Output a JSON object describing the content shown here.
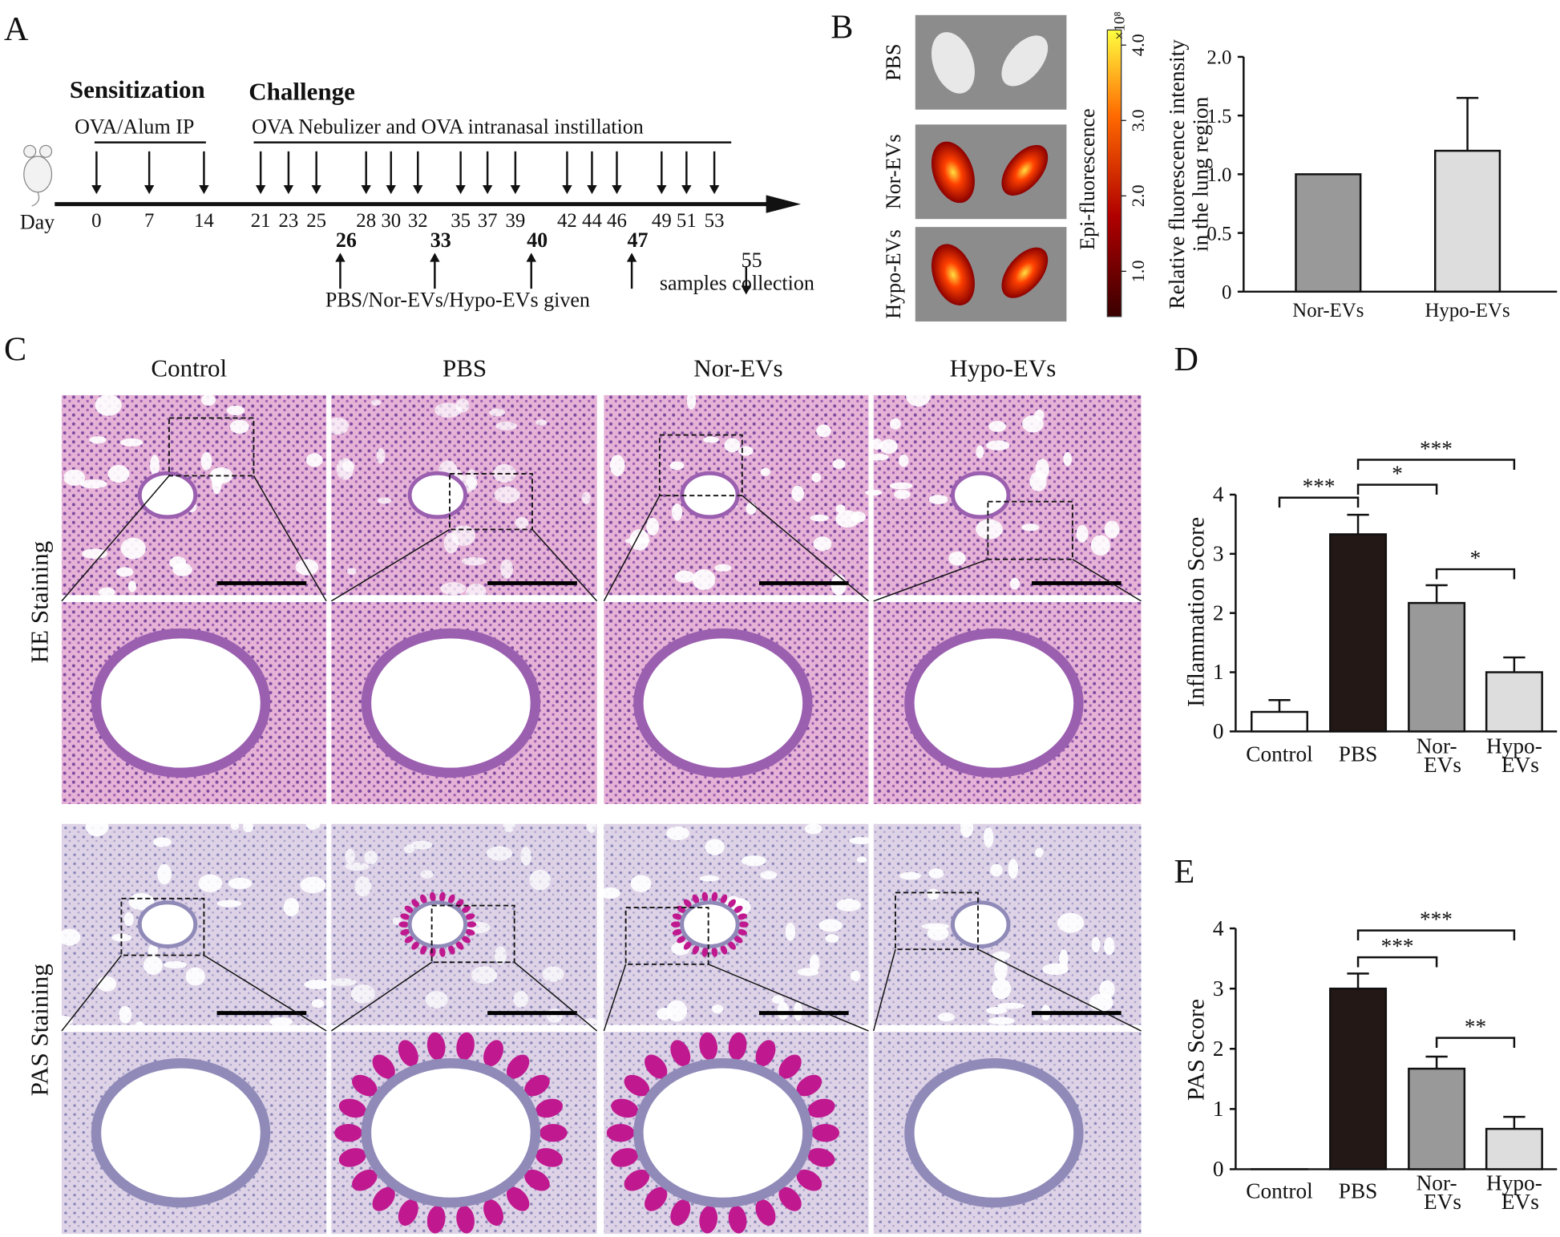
{
  "panels": {
    "A": {
      "label": "A",
      "sensitization": "Sensitization",
      "challenge": "Challenge",
      "sensitization_route": "OVA/Alum IP",
      "challenge_route": "OVA Nebulizer and OVA intranasal instillation",
      "day_label": "Day",
      "days": [
        "0",
        "7",
        "14",
        "21",
        "23",
        "25",
        "28",
        "30",
        "32",
        "35",
        "37",
        "39",
        "42",
        "44",
        "46",
        "49",
        "51",
        "53"
      ],
      "treatment_days": [
        "26",
        "33",
        "40",
        "47"
      ],
      "treatment": "PBS/Nor-EVs/Hypo-EVs given",
      "end_day": "55",
      "end_event": "samples collection"
    },
    "B_image": {
      "label": "B",
      "rows": [
        "PBS",
        "Nor-EVs",
        "Hypo-EVs"
      ],
      "colorbar": {
        "title": "Epi-fluorescence",
        "multiplier": "×10⁸",
        "range": [
          0.4,
          4.2
        ],
        "ticks": [
          {
            "value": 1,
            "label": "1.0"
          },
          {
            "value": 2,
            "label": "2.0"
          },
          {
            "value": 3,
            "label": "3.0"
          },
          {
            "value": 4,
            "label": "4.0"
          }
        ]
      }
    },
    "C": {
      "label": "C",
      "columns": [
        "Control",
        "PBS",
        "Nor-EVs",
        "Hypo-EVs"
      ],
      "rows": [
        "HE Staining",
        "PAS Staining"
      ]
    },
    "D": {
      "label": "D"
    },
    "E": {
      "label": "E"
    }
  },
  "chart_data": [
    {
      "type": "bar",
      "y_label": [
        "Relative fluorescence intensity",
        "in the lung region"
      ],
      "categories": [
        "Nor-EVs",
        "Hypo-EVs"
      ],
      "values": [
        1.0,
        1.2
      ],
      "errors": [
        null,
        0.45
      ],
      "colors": [
        "#999999",
        "#dddddd"
      ],
      "ylim": [
        0,
        2
      ],
      "yticks": [
        0,
        0.5,
        {
          "value": 1,
          "label": "1.0"
        },
        1.5,
        {
          "value": 2,
          "label": "2.0"
        }
      ]
    },
    {
      "type": "bar",
      "y_label": [
        "Inflammation Score"
      ],
      "categories": [
        "Control",
        "PBS",
        "Nor-EVs",
        "Hypo-EVs"
      ],
      "values": [
        0.33,
        3.33,
        2.17,
        1.0
      ],
      "errors": [
        0.2,
        0.33,
        0.3,
        0.25
      ],
      "colors": [
        "#ffffff",
        "#231815",
        "#999999",
        "#dddddd"
      ],
      "ylim": [
        0,
        4
      ],
      "yticks": [
        0,
        1,
        2,
        3,
        4
      ],
      "annotations": [
        "***",
        "*",
        "***",
        "*"
      ]
    },
    {
      "type": "bar",
      "y_label": [
        "PAS Score"
      ],
      "categories": [
        "Control",
        "PBS",
        "Nor-EVs",
        "Hypo-EVs"
      ],
      "values": [
        0,
        3.0,
        1.67,
        0.67
      ],
      "errors": [
        null,
        0.25,
        0.2,
        0.2
      ],
      "colors": [
        "#ffffff",
        "#231815",
        "#999999",
        "#dddddd"
      ],
      "ylim": [
        0,
        4
      ],
      "yticks": [
        0,
        1,
        2,
        3,
        4
      ],
      "annotations": [
        "***",
        "***",
        "**"
      ]
    }
  ]
}
